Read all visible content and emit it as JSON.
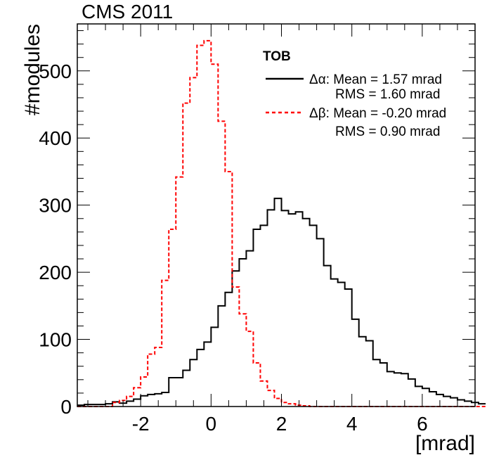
{
  "chart_data": {
    "type": "histogram",
    "title": "CMS 2011",
    "xlabel": "[mrad]",
    "ylabel": "#modules",
    "xlim": [
      -3.8,
      7.5
    ],
    "ylim": [
      0,
      570
    ],
    "bin_width": 0.2,
    "x_start": -3.8,
    "xticks": [
      "-2",
      "0",
      "2",
      "4",
      "6"
    ],
    "yticks": [
      "0",
      "100",
      "200",
      "300",
      "400",
      "500"
    ],
    "xtick_values": [
      -2,
      0,
      2,
      4,
      6
    ],
    "ytick_values": [
      0,
      100,
      200,
      300,
      400,
      500
    ],
    "legend_title": "TOB",
    "series": [
      {
        "name": "Δα",
        "mean_text": "Mean =  1.57 mrad",
        "rms_text": "RMS  =  1.60 mrad",
        "color": "#000000",
        "style": "solid",
        "values": [
          2,
          3,
          3,
          3,
          4,
          7,
          5,
          8,
          11,
          16,
          18,
          19,
          21,
          43,
          43,
          54,
          70,
          85,
          96,
          118,
          150,
          170,
          202,
          220,
          232,
          264,
          270,
          293,
          310,
          292,
          287,
          290,
          280,
          270,
          250,
          210,
          190,
          185,
          175,
          130,
          104,
          98,
          70,
          65,
          52,
          50,
          49,
          41,
          30,
          27,
          22,
          18,
          15,
          13,
          10,
          8,
          6,
          4
        ]
      },
      {
        "name": "Δβ",
        "mean_text": "Mean =  -0.20 mrad",
        "rms_text": "RMS  =   0.90 mrad",
        "color": "#ff0000",
        "style": "dashed",
        "values": [
          0,
          0,
          0,
          0,
          0,
          6,
          9,
          15,
          28,
          44,
          78,
          88,
          188,
          264,
          342,
          452,
          490,
          538,
          545,
          510,
          425,
          350,
          178,
          138,
          112,
          65,
          38,
          24,
          12,
          6,
          4,
          2,
          1,
          0,
          0,
          0,
          0,
          0,
          0,
          0,
          0,
          0,
          0,
          0,
          0,
          0,
          0,
          0,
          0,
          0,
          0,
          0,
          0,
          0,
          0,
          0,
          0,
          0
        ]
      }
    ]
  }
}
